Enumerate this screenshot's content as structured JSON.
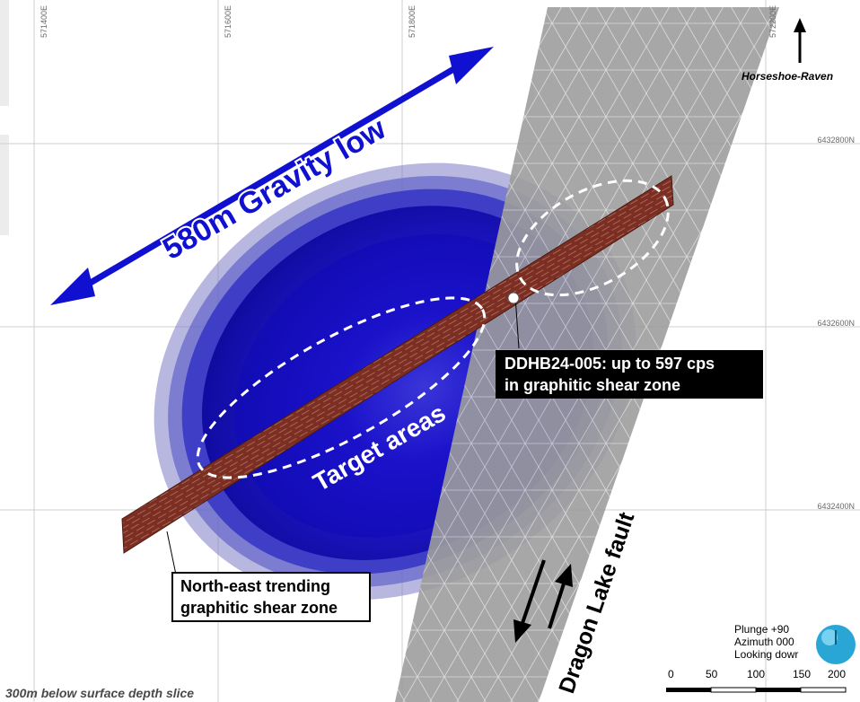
{
  "grid": {
    "eastings": [
      "571400E",
      "571600E",
      "571800E",
      "572200E"
    ],
    "northings": [
      "6432800N",
      "6432600N",
      "6432400N"
    ]
  },
  "labels": {
    "gravity_low": "580m Gravity low",
    "target_areas": "Target areas",
    "fault": "Dragon Lake fault",
    "north": "Horseshoe-Raven",
    "depth_slice": "300m below surface depth slice"
  },
  "callouts": {
    "drillhole_line1": "DDHB24-005: up to 597 cps",
    "drillhole_line2": "in graphitic shear zone",
    "shear_line1": "North-east trending",
    "shear_line2": "graphitic shear zone"
  },
  "view": {
    "plunge": "Plunge +90",
    "azimuth": "Azimuth 000",
    "looking": "Looking dowr"
  },
  "scale_bar": {
    "ticks": [
      "0",
      "50",
      "100",
      "150",
      "200"
    ]
  },
  "colors": {
    "gravity_body": "#1a0fd6",
    "shear_zone": "#7a2f22",
    "fault_plane": "#9c9c9c",
    "arrow": "#1010d0",
    "grid": "#cfcfcf"
  }
}
